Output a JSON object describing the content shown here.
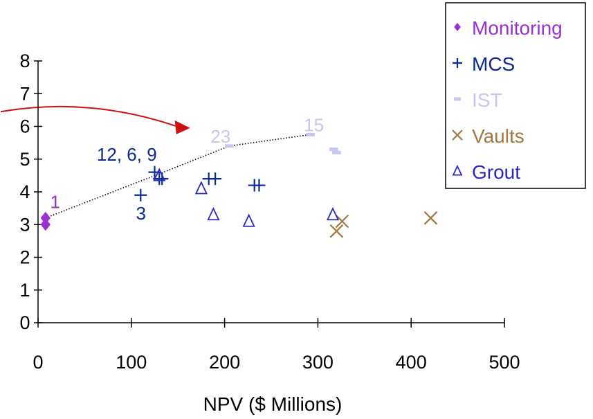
{
  "chart_data": {
    "type": "scatter",
    "title": "",
    "xlabel": "NPV ($ Millions)",
    "ylabel": "",
    "xlim": [
      0,
      500
    ],
    "ylim": [
      0,
      8
    ],
    "x_ticks": [
      0,
      100,
      200,
      300,
      400,
      500
    ],
    "y_ticks": [
      0,
      1,
      2,
      3,
      4,
      5,
      6,
      7,
      8
    ],
    "grid": false,
    "legend_position": "top-right",
    "series": [
      {
        "name": "Monitoring",
        "color": "#9b30d0",
        "marker": "diamond",
        "points": [
          [
            8,
            3.2
          ],
          [
            8,
            3.0
          ]
        ]
      },
      {
        "name": "MCS",
        "color": "#0a2a96",
        "marker": "plus",
        "points": [
          [
            110,
            3.9
          ],
          [
            125,
            4.6
          ],
          [
            130,
            4.4
          ],
          [
            133,
            4.4
          ],
          [
            183,
            4.4
          ],
          [
            190,
            4.4
          ],
          [
            232,
            4.2
          ],
          [
            237,
            4.2
          ]
        ]
      },
      {
        "name": "IST",
        "color": "#c8c8ee",
        "marker": "dash",
        "points": [
          [
            205,
            5.4
          ],
          [
            292,
            5.75
          ],
          [
            317,
            5.3
          ],
          [
            320,
            5.2
          ]
        ]
      },
      {
        "name": "Vaults",
        "color": "#a07840",
        "marker": "x",
        "points": [
          [
            320,
            2.8
          ],
          [
            326,
            3.1
          ],
          [
            421,
            3.2
          ]
        ]
      },
      {
        "name": "Grout",
        "color": "#2828c0",
        "marker": "triangle",
        "points": [
          [
            130,
            4.5
          ],
          [
            175,
            4.1
          ],
          [
            188,
            3.3
          ],
          [
            226,
            3.1
          ],
          [
            316,
            3.3
          ]
        ]
      }
    ],
    "frontier_line": {
      "style": "dotted",
      "points": [
        [
          8,
          3.2
        ],
        [
          130,
          4.55
        ],
        [
          205,
          5.4
        ],
        [
          292,
          5.75
        ]
      ]
    },
    "annotations": [
      {
        "text": "1",
        "x": 13,
        "y": 3.5,
        "color": "#9b30d0"
      },
      {
        "text": "12, 6, 9",
        "x": 63,
        "y": 4.95,
        "color": "#0a2a96"
      },
      {
        "text": "3",
        "x": 105,
        "y": 3.15,
        "color": "#0a2a96"
      },
      {
        "text": "23",
        "x": 185,
        "y": 5.5,
        "color": "#c8c8ee"
      },
      {
        "text": "15",
        "x": 285,
        "y": 5.85,
        "color": "#c8c8ee"
      }
    ],
    "arrow": {
      "color": "#cc1111",
      "from": [
        -40,
        6.45
      ],
      "to": [
        163,
        5.95
      ]
    }
  }
}
